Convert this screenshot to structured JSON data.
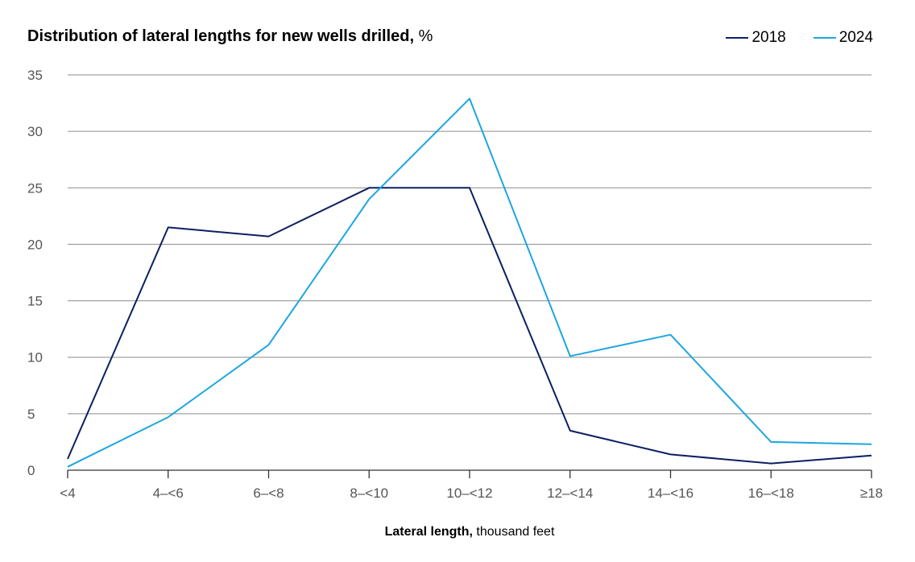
{
  "chart_data": {
    "type": "line",
    "title": "Distribution of lateral lengths for new wells drilled,",
    "title_unit": "%",
    "xlabel": "Lateral length,",
    "xlabel_unit": "thousand feet",
    "ylabel": "",
    "categories": [
      "<4",
      "4–<6",
      "6–<8",
      "8–<10",
      "10–<12",
      "12–<14",
      "14–<16",
      "16–<18",
      "≥18"
    ],
    "y_ticks": [
      "0",
      "5",
      "10",
      "15",
      "20",
      "25",
      "30",
      "35"
    ],
    "ylim": [
      0,
      35
    ],
    "grid": true,
    "legend_position": "top-right",
    "series": [
      {
        "name": "2018",
        "color": "#0b1f63",
        "values": [
          1.0,
          21.5,
          20.7,
          25.0,
          25.0,
          3.5,
          1.4,
          0.6,
          1.3
        ]
      },
      {
        "name": "2024",
        "color": "#1ca6e0",
        "values": [
          0.3,
          4.7,
          11.1,
          24.0,
          32.9,
          10.1,
          12.0,
          2.5,
          2.3
        ]
      }
    ]
  }
}
